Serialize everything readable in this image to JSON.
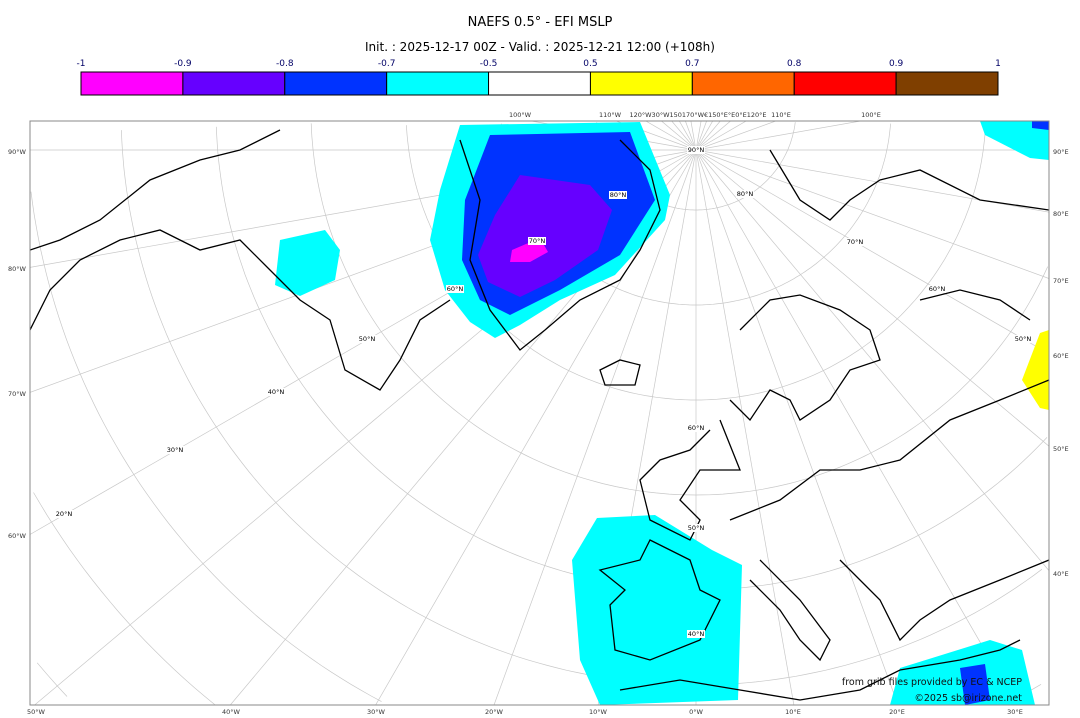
{
  "title": "NAEFS 0.5° - EFI MSLP",
  "subtitle": "Init. : 2025-12-17 00Z - Valid. : 2025-12-21 12:00 (+108h)",
  "colorbar": {
    "ticks": [
      "-1",
      "-0.9",
      "-0.8",
      "-0.7",
      "-0.5",
      "0.5",
      "0.7",
      "0.8",
      "0.9",
      "1"
    ],
    "colors": [
      "#ff00ff",
      "#6600ff",
      "#0033ff",
      "#00ffff",
      "#ffffff",
      "#ffff00",
      "#ff6600",
      "#ff0000",
      "#7f3f00"
    ]
  },
  "map": {
    "left_labels": [
      "90°W",
      "80°W",
      "70°W",
      "60°W"
    ],
    "right_labels": [
      "90°E",
      "80°E",
      "70°E",
      "60°E",
      "50°E",
      "40°E"
    ],
    "bottom_labels": [
      "50°W",
      "40°W",
      "30°W",
      "20°W",
      "10°W",
      "0°W",
      "10°E",
      "20°E",
      "30°E"
    ],
    "top_labels": [
      "100°W",
      "110°W",
      "120°W30°W150170°W€150°E°E0°E120°E",
      "110°E",
      "100°E"
    ],
    "lat_labels": [
      "90°N",
      "80°N",
      "80°N",
      "70°N",
      "70°N",
      "60°N",
      "60°N",
      "60°N",
      "50°N",
      "50°N",
      "50°N",
      "40°N",
      "40°N",
      "30°N",
      "20°N"
    ]
  },
  "credits": {
    "line1": "from grib files provided by EC & NCEP",
    "line2": "©2025 sb@irizone.net"
  }
}
